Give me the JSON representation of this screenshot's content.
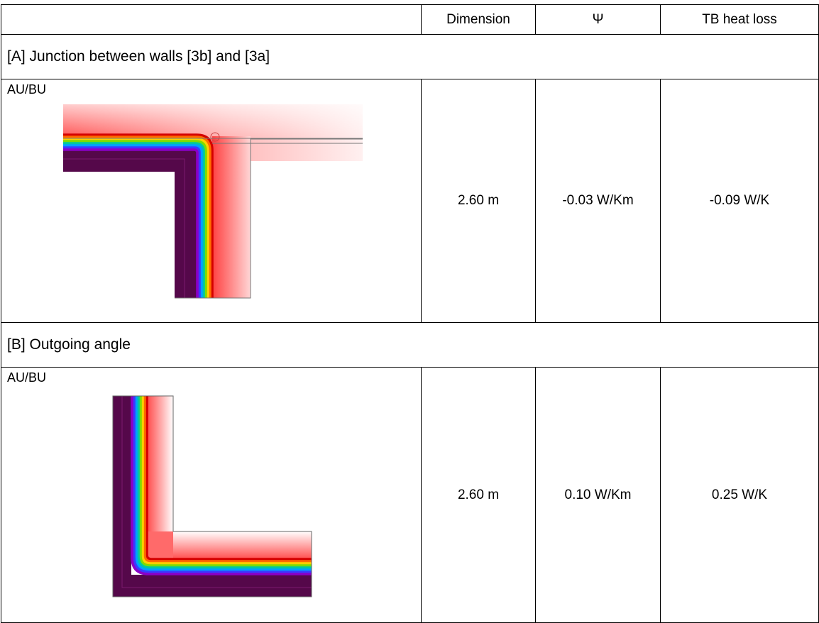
{
  "header": {
    "columns": [
      "Dimension",
      "Ψ",
      "TB heat loss"
    ]
  },
  "sections": [
    {
      "title": "[A] Junction between walls [3b] and [3a]",
      "label": "AU/BU",
      "dimension": "2.60 m",
      "psi": "-0.03 W/Km",
      "heat_loss": "-0.09 W/K"
    },
    {
      "title": "[B] Outgoing angle",
      "label": "AU/BU",
      "dimension": "2.60 m",
      "psi": "0.10 W/Km",
      "heat_loss": "0.25 W/K"
    }
  ]
}
